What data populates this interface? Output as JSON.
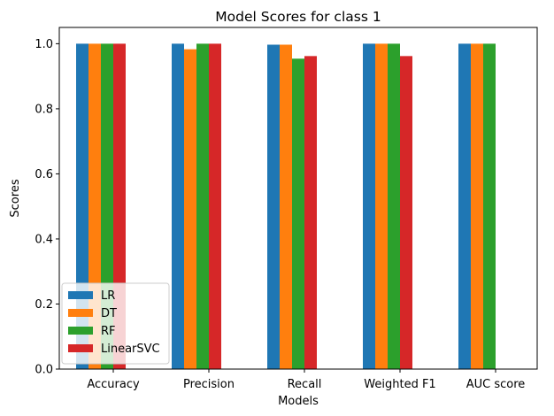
{
  "chart_data": {
    "type": "bar",
    "title": "Model Scores for class 1",
    "xlabel": "Models",
    "ylabel": "Scores",
    "categories": [
      "Accuracy",
      "Precision",
      "Recall",
      "Weighted F1",
      "AUC score"
    ],
    "ylim": [
      0,
      1.05
    ],
    "yticks": [
      0.0,
      0.2,
      0.4,
      0.6,
      0.8,
      1.0
    ],
    "ytick_labels": [
      "0.0",
      "0.2",
      "0.4",
      "0.6",
      "0.8",
      "1.0"
    ],
    "grid": false,
    "legend_position": "lower-left",
    "series": [
      {
        "name": "LR",
        "color": "#1f77b4",
        "values": [
          1.0,
          1.0,
          0.997,
          1.0,
          1.0
        ]
      },
      {
        "name": "DT",
        "color": "#ff7f0e",
        "values": [
          1.0,
          0.983,
          0.997,
          1.0,
          1.0
        ]
      },
      {
        "name": "RF",
        "color": "#2ca02c",
        "values": [
          1.0,
          1.0,
          0.954,
          1.0,
          1.0
        ]
      },
      {
        "name": "LinearSVC",
        "color": "#d62728",
        "values": [
          1.0,
          1.0,
          0.962,
          0.962,
          null
        ]
      }
    ]
  }
}
